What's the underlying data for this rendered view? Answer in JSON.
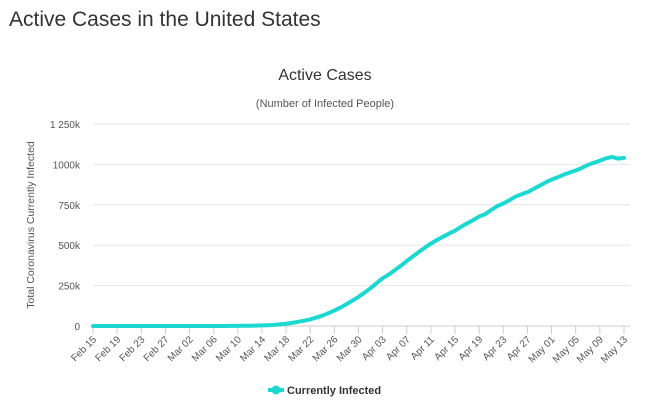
{
  "page": {
    "heading": "Active Cases in the United States"
  },
  "chart_data": {
    "type": "line",
    "title": "Active Cases",
    "subtitle": "(Number of Infected People)",
    "xlabel": "",
    "ylabel": "Total Coronavirus Currently Infected",
    "ylim": [
      0,
      1250000
    ],
    "y_ticks": [
      0,
      250000,
      500000,
      750000,
      1000000,
      1250000
    ],
    "y_tick_labels": [
      "0",
      "250k",
      "500k",
      "750k",
      "1000k",
      "1 250k"
    ],
    "x_tick_labels": [
      "Feb 15",
      "Feb 19",
      "Feb 23",
      "Feb 27",
      "Mar 02",
      "Mar 06",
      "Mar 10",
      "Mar 14",
      "Mar 18",
      "Mar 22",
      "Mar 26",
      "Mar 30",
      "Apr 03",
      "Apr 07",
      "Apr 11",
      "Apr 15",
      "Apr 19",
      "Apr 23",
      "Apr 27",
      "May 01",
      "May 05",
      "May 09",
      "May 13"
    ],
    "grid": true,
    "legend_position": "bottom-center",
    "series": [
      {
        "name": "Currently Infected",
        "color": "#1dd8d0",
        "values": [
          0,
          0,
          0,
          0,
          0,
          0,
          0,
          0,
          0,
          0,
          0,
          0,
          0,
          0,
          0,
          0,
          0,
          0,
          0,
          0,
          100,
          200,
          300,
          500,
          800,
          1200,
          1800,
          2500,
          3500,
          5000,
          7000,
          10000,
          14000,
          19000,
          26000,
          33000,
          41000,
          52000,
          64000,
          79000,
          95000,
          114000,
          135000,
          157000,
          180000,
          206000,
          234000,
          265000,
          295000,
          318000,
          345000,
          372000,
          402000,
          430000,
          458000,
          485000,
          510000,
          532000,
          552000,
          572000,
          590000,
          614000,
          635000,
          655000,
          678000,
          692000,
          718000,
          742000,
          758000,
          778000,
          800000,
          815000,
          828000,
          848000,
          868000,
          888000,
          906000,
          920000,
          936000,
          950000,
          962000,
          978000,
          996000,
          1010000,
          1022000,
          1038000,
          1046000,
          1036000,
          1040000
        ]
      }
    ]
  }
}
